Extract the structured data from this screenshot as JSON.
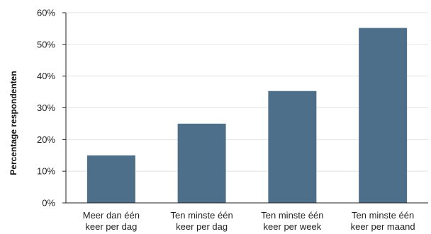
{
  "chart_data": {
    "type": "bar",
    "title": "",
    "xlabel": "",
    "ylabel": "Percentage respondenten",
    "categories": [
      [
        "Meer dan één",
        "keer per dag"
      ],
      [
        "Ten minste één",
        "keer per dag"
      ],
      [
        "Ten minste één",
        "keer per week"
      ],
      [
        "Ten minste één",
        "keer per maand"
      ]
    ],
    "values": [
      15,
      25,
      35.3,
      55.2
    ],
    "ylim": [
      0,
      60
    ],
    "yticks": [
      0,
      10,
      20,
      30,
      40,
      50,
      60
    ],
    "ytick_labels": [
      "0%",
      "10%",
      "20%",
      "30%",
      "40%",
      "50%",
      "60%"
    ],
    "grid": true,
    "bar_color": "#4e6f89",
    "legend": "none"
  }
}
